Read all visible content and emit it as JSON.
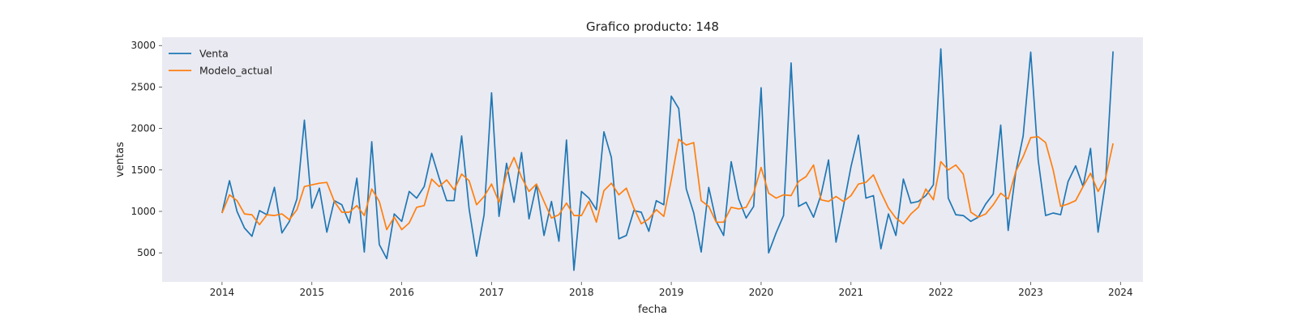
{
  "chart_data": {
    "type": "line",
    "title": "Grafico producto: 148",
    "xlabel": "fecha",
    "ylabel": "ventas",
    "x_start": "2014-01",
    "x_frequency": "monthly",
    "x_ticks": [
      "2014",
      "2015",
      "2016",
      "2017",
      "2018",
      "2019",
      "2020",
      "2021",
      "2022",
      "2023",
      "2024"
    ],
    "y_ticks": [
      500,
      1000,
      1500,
      2000,
      2500,
      3000
    ],
    "xlim": [
      "2013-05",
      "2024-04"
    ],
    "ylim": [
      150,
      3100
    ],
    "grid": false,
    "legend_position": "top-left",
    "background": "#eaeaf2",
    "series": [
      {
        "name": "Venta",
        "color": "#1f77b4",
        "values": [
          980,
          1370,
          1000,
          800,
          700,
          1010,
          960,
          1290,
          740,
          880,
          1150,
          2100,
          1040,
          1280,
          750,
          1130,
          1080,
          860,
          1400,
          510,
          1840,
          600,
          430,
          970,
          880,
          1240,
          1160,
          1300,
          1700,
          1400,
          1130,
          1130,
          1910,
          1030,
          460,
          960,
          2430,
          940,
          1580,
          1110,
          1710,
          910,
          1320,
          710,
          1120,
          640,
          1860,
          290,
          1240,
          1160,
          1020,
          1960,
          1650,
          670,
          710,
          1010,
          990,
          760,
          1130,
          1080,
          2390,
          2240,
          1270,
          980,
          510,
          1290,
          880,
          710,
          1600,
          1150,
          920,
          1060,
          2490,
          500,
          740,
          950,
          2790,
          1060,
          1110,
          930,
          1200,
          1620,
          630,
          1060,
          1540,
          1920,
          1160,
          1190,
          550,
          970,
          710,
          1390,
          1100,
          1120,
          1190,
          1320,
          2960,
          1160,
          960,
          950,
          880,
          930,
          1090,
          1210,
          2040,
          770,
          1470,
          1910,
          2920,
          1620,
          950,
          980,
          960,
          1360,
          1550,
          1300,
          1760,
          750,
          1350,
          2930
        ]
      },
      {
        "name": "Modelo_actual",
        "color": "#ff7f0e",
        "values": [
          980,
          1200,
          1130,
          970,
          960,
          840,
          960,
          950,
          970,
          900,
          1020,
          1300,
          1320,
          1340,
          1350,
          1120,
          990,
          990,
          1070,
          950,
          1270,
          1120,
          780,
          930,
          780,
          860,
          1050,
          1070,
          1390,
          1300,
          1380,
          1260,
          1450,
          1370,
          1080,
          1180,
          1330,
          1110,
          1450,
          1650,
          1410,
          1240,
          1330,
          1120,
          920,
          960,
          1100,
          950,
          950,
          1120,
          870,
          1250,
          1340,
          1200,
          1280,
          1040,
          850,
          910,
          1020,
          940,
          1380,
          1870,
          1800,
          1830,
          1130,
          1060,
          870,
          870,
          1050,
          1030,
          1050,
          1220,
          1530,
          1220,
          1160,
          1200,
          1190,
          1360,
          1420,
          1560,
          1140,
          1120,
          1180,
          1120,
          1190,
          1330,
          1350,
          1440,
          1230,
          1040,
          920,
          850,
          970,
          1050,
          1270,
          1140,
          1600,
          1500,
          1560,
          1450,
          990,
          930,
          970,
          1080,
          1220,
          1150,
          1480,
          1660,
          1890,
          1900,
          1830,
          1500,
          1060,
          1090,
          1130,
          1300,
          1460,
          1240,
          1400,
          1820
        ]
      }
    ]
  }
}
